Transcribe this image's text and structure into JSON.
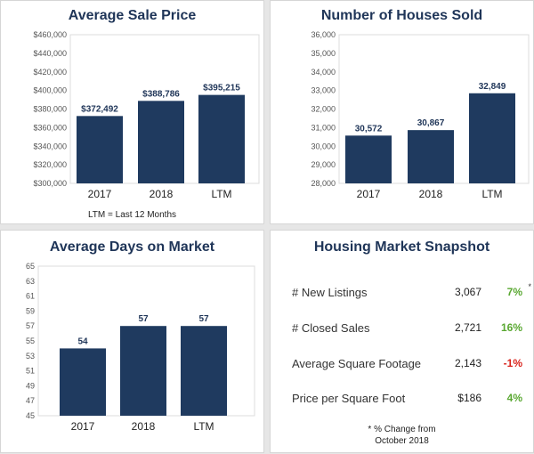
{
  "colors": {
    "bar": "#1f3a5f",
    "positive": "#5aa832",
    "negative": "#d9241c",
    "title": "#1f3558"
  },
  "chart_data": [
    {
      "type": "bar",
      "title": "Average Sale Price",
      "categories": [
        "2017",
        "2018",
        "LTM"
      ],
      "values": [
        372492,
        388786,
        395215
      ],
      "value_labels": [
        "$372,492",
        "$388,786",
        "$395,215"
      ],
      "ylim": [
        300000,
        460000
      ],
      "yticks": [
        "$300,000",
        "$320,000",
        "$340,000",
        "$360,000",
        "$380,000",
        "$400,000",
        "$420,000",
        "$440,000",
        "$460,000"
      ],
      "ytick_values": [
        300000,
        320000,
        340000,
        360000,
        380000,
        400000,
        420000,
        440000,
        460000
      ],
      "note": "LTM = Last 12 Months"
    },
    {
      "type": "bar",
      "title": "Number of Houses Sold",
      "categories": [
        "2017",
        "2018",
        "LTM"
      ],
      "values": [
        30572,
        30867,
        32849
      ],
      "value_labels": [
        "30,572",
        "30,867",
        "32,849"
      ],
      "ylim": [
        28000,
        36000
      ],
      "yticks": [
        "28,000",
        "29,000",
        "30,000",
        "31,000",
        "32,000",
        "33,000",
        "34,000",
        "35,000",
        "36,000"
      ],
      "ytick_values": [
        28000,
        29000,
        30000,
        31000,
        32000,
        33000,
        34000,
        35000,
        36000
      ]
    },
    {
      "type": "bar",
      "title": "Average Days on Market",
      "categories": [
        "2017",
        "2018",
        "LTM"
      ],
      "values": [
        54,
        57,
        57
      ],
      "value_labels": [
        "54",
        "57",
        "57"
      ],
      "ylim": [
        45,
        65
      ],
      "yticks": [
        "45",
        "47",
        "49",
        "51",
        "53",
        "55",
        "57",
        "59",
        "61",
        "63",
        "65"
      ],
      "ytick_values": [
        45,
        47,
        49,
        51,
        53,
        55,
        57,
        59,
        61,
        63,
        65
      ]
    }
  ],
  "snapshot": {
    "title": "Housing Market Snapshot",
    "rows": [
      {
        "label": "# New Listings",
        "value": "3,067",
        "change": "7%",
        "positive": true
      },
      {
        "label": "# Closed Sales",
        "value": "2,721",
        "change": "16%",
        "positive": true
      },
      {
        "label": "Average Square Footage",
        "value": "2,143",
        "change": "-1%",
        "positive": false
      },
      {
        "label": "Price per Square Foot",
        "value": "$186",
        "change": "4%",
        "positive": true
      }
    ],
    "asterisk": "*",
    "footnote_line1": "* % Change from",
    "footnote_line2": "October 2018"
  }
}
